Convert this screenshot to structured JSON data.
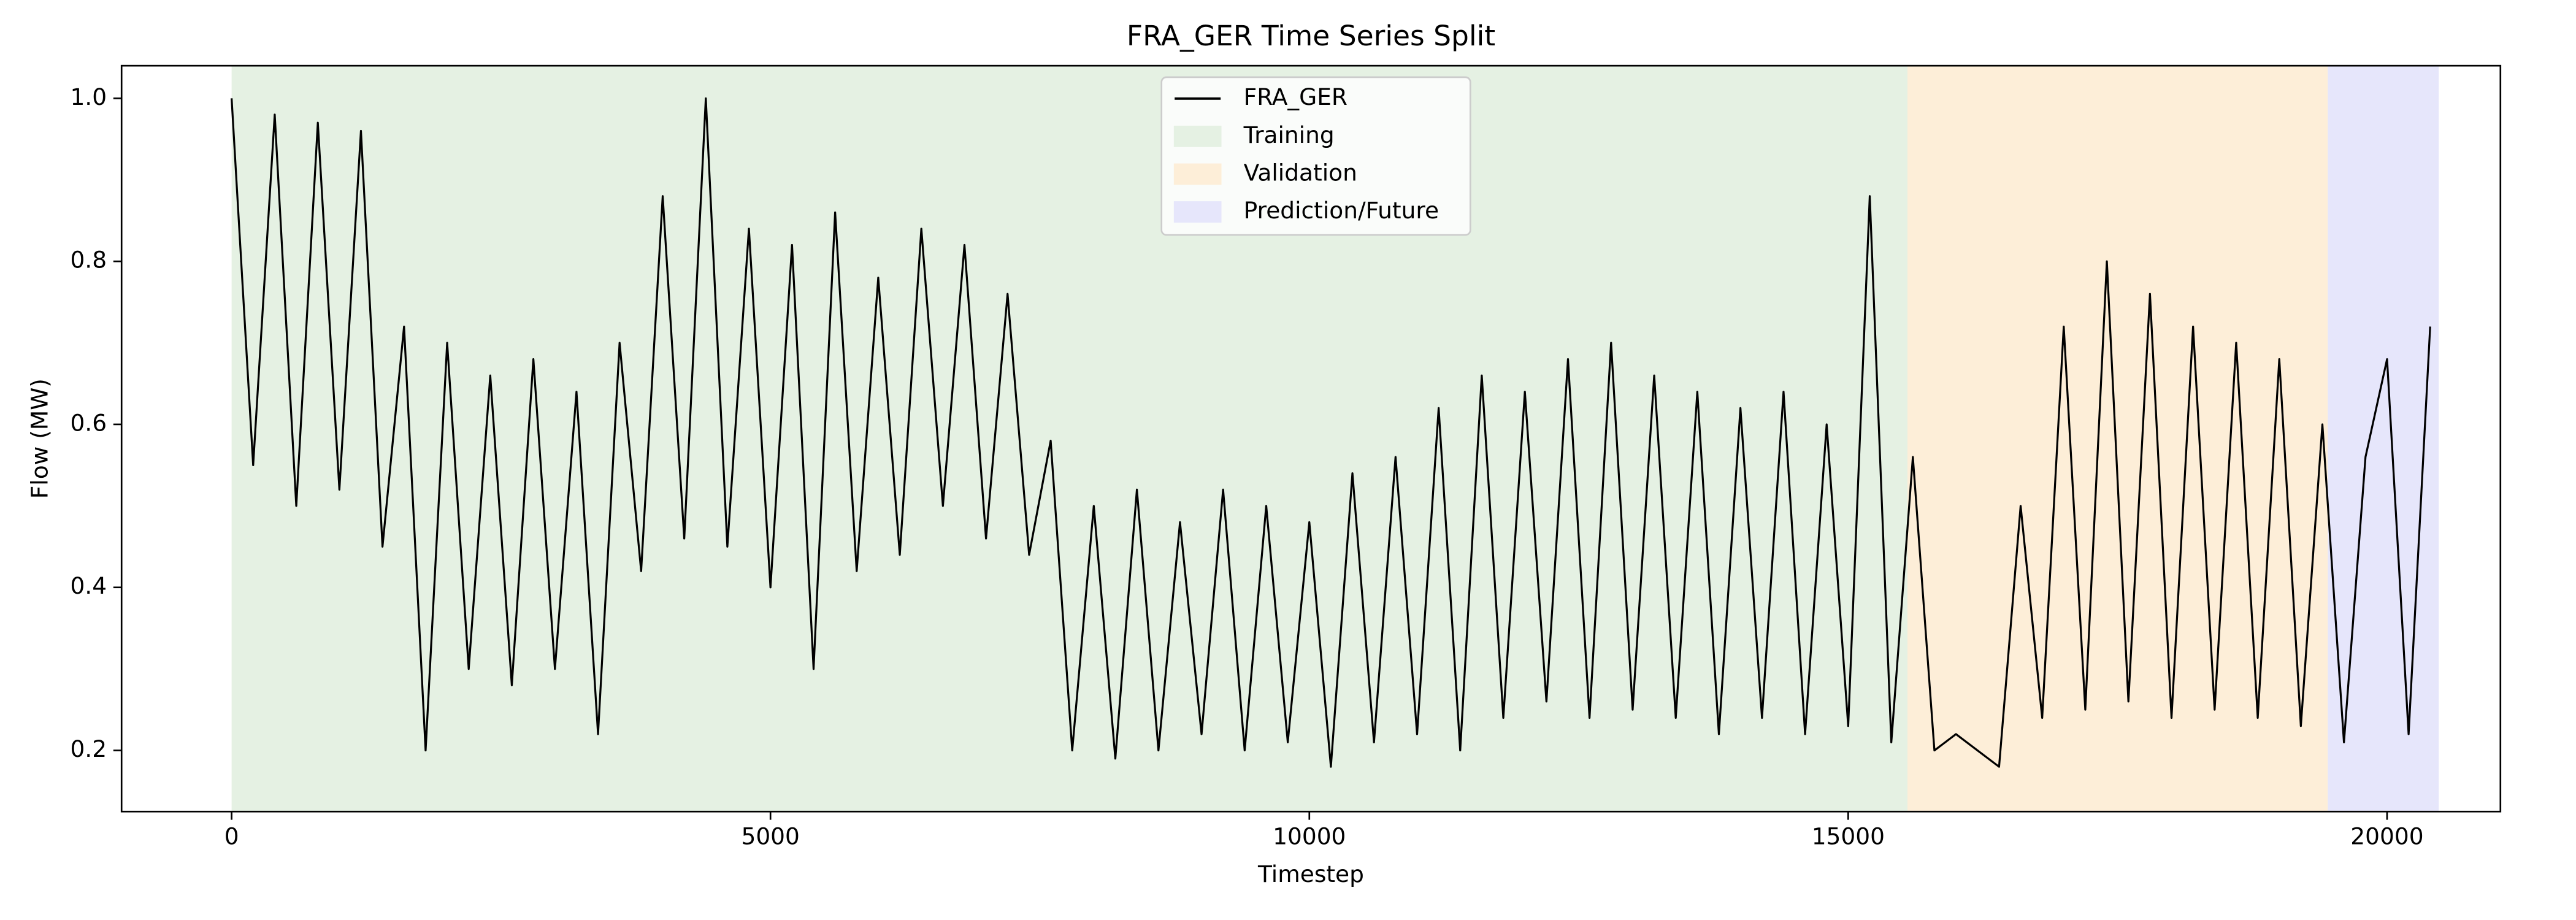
{
  "chart_data": {
    "type": "line",
    "title": "FRA_GER Time Series Split",
    "xlabel": "Timestep",
    "ylabel": "Flow (MW)",
    "xlim": [
      -1021,
      21052
    ],
    "ylim": [
      0.125,
      1.04
    ],
    "xticks": [
      0,
      5000,
      10000,
      15000,
      20000
    ],
    "yticks": [
      0.2,
      0.4,
      0.6,
      0.8,
      {
        "value": 1,
        "label": "1.0"
      }
    ],
    "legend": "upper center",
    "spans": [
      {
        "name": "Training",
        "color": "#e5f1e3",
        "start": 0,
        "end": 15550
      },
      {
        "name": "Validation",
        "color": "#fdeed8",
        "start": 15550,
        "end": 19450
      },
      {
        "name": "Prediction/Future",
        "color": "#e6e6fb",
        "start": 19450,
        "end": 20480
      }
    ],
    "series": [
      {
        "name": "FRA_GER",
        "color": "#000000",
        "x": [
          0,
          200,
          400,
          600,
          800,
          1000,
          1200,
          1400,
          1600,
          1800,
          2000,
          2200,
          2400,
          2600,
          2800,
          3000,
          3200,
          3400,
          3600,
          3800,
          4000,
          4200,
          4400,
          4600,
          4800,
          5000,
          5200,
          5400,
          5600,
          5800,
          6000,
          6200,
          6400,
          6600,
          6800,
          7000,
          7200,
          7400,
          7600,
          7800,
          8000,
          8200,
          8400,
          8600,
          8800,
          9000,
          9200,
          9400,
          9600,
          9800,
          10000,
          10200,
          10400,
          10600,
          10800,
          11000,
          11200,
          11400,
          11600,
          11800,
          12000,
          12200,
          12400,
          12600,
          12800,
          13000,
          13200,
          13400,
          13600,
          13800,
          14000,
          14200,
          14400,
          14600,
          14800,
          15000,
          15200,
          15400,
          15600,
          15800,
          16000,
          16200,
          16400,
          16600,
          16800,
          17000,
          17200,
          17400,
          17600,
          17800,
          18000,
          18200,
          18400,
          18600,
          18800,
          19000,
          19200,
          19400,
          19600,
          19800,
          20000,
          20200,
          20400
        ],
        "values": [
          1.0,
          0.55,
          0.98,
          0.5,
          0.97,
          0.52,
          0.96,
          0.45,
          0.72,
          0.2,
          0.7,
          0.3,
          0.66,
          0.28,
          0.68,
          0.3,
          0.64,
          0.22,
          0.7,
          0.42,
          0.88,
          0.46,
          1.0,
          0.45,
          0.84,
          0.4,
          0.82,
          0.3,
          0.86,
          0.42,
          0.78,
          0.44,
          0.84,
          0.5,
          0.82,
          0.46,
          0.76,
          0.44,
          0.58,
          0.2,
          0.5,
          0.19,
          0.52,
          0.2,
          0.48,
          0.22,
          0.52,
          0.2,
          0.5,
          0.21,
          0.48,
          0.18,
          0.54,
          0.21,
          0.56,
          0.22,
          0.62,
          0.2,
          0.66,
          0.24,
          0.64,
          0.26,
          0.68,
          0.24,
          0.7,
          0.25,
          0.66,
          0.24,
          0.64,
          0.22,
          0.62,
          0.24,
          0.64,
          0.22,
          0.6,
          0.23,
          0.88,
          0.21,
          0.56,
          0.2,
          0.22,
          0.2,
          0.18,
          0.5,
          0.24,
          0.72,
          0.25,
          0.8,
          0.26,
          0.76,
          0.24,
          0.72,
          0.25,
          0.7,
          0.24,
          0.68,
          0.23,
          0.6,
          0.21,
          0.56,
          0.68,
          0.22,
          0.72
        ]
      }
    ]
  }
}
